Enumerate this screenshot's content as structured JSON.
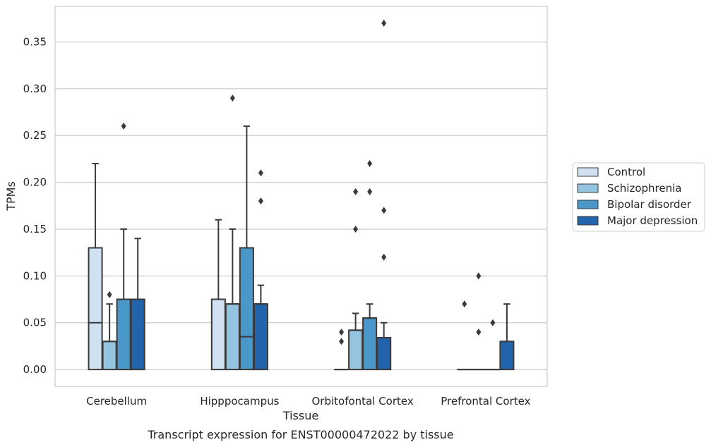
{
  "chart_data": {
    "type": "box",
    "title": "",
    "caption": "Transcript expression for ENST00000472022 by tissue",
    "xlabel": "Tissue",
    "ylabel": "TPMs",
    "ylim": [
      -0.018,
      0.388
    ],
    "yticks": [
      0.0,
      0.05,
      0.1,
      0.15,
      0.2,
      0.25,
      0.3,
      0.35
    ],
    "ytick_labels": [
      "0.00",
      "0.05",
      "0.10",
      "0.15",
      "0.20",
      "0.25",
      "0.30",
      "0.35"
    ],
    "grid": "horizontal",
    "legend_position": "right",
    "categories": [
      "Cerebellum",
      "Hipppocampus",
      "Orbitofontal Cortex",
      "Prefrontal Cortex"
    ],
    "series": [
      {
        "name": "Control",
        "color": "#d0e1f2",
        "boxes": [
          {
            "min": 0.0,
            "q1": 0.0,
            "median": 0.05,
            "q3": 0.13,
            "max": 0.22,
            "outliers": []
          },
          {
            "min": 0.0,
            "q1": 0.0,
            "median": 0.075,
            "q3": 0.075,
            "max": 0.16,
            "outliers": []
          },
          {
            "min": 0.0,
            "q1": 0.0,
            "median": 0.0,
            "q3": 0.0,
            "max": 0.0,
            "outliers": [
              0.03,
              0.04
            ]
          },
          {
            "min": 0.0,
            "q1": 0.0,
            "median": 0.0,
            "q3": 0.0,
            "max": 0.0,
            "outliers": [
              0.07
            ]
          }
        ]
      },
      {
        "name": "Schizophrenia",
        "color": "#94c4df",
        "boxes": [
          {
            "min": 0.0,
            "q1": 0.0,
            "median": 0.03,
            "q3": 0.03,
            "max": 0.07,
            "outliers": [
              0.08
            ]
          },
          {
            "min": 0.0,
            "q1": 0.0,
            "median": 0.07,
            "q3": 0.07,
            "max": 0.15,
            "outliers": [
              0.29
            ]
          },
          {
            "min": 0.0,
            "q1": 0.0,
            "median": 0.042,
            "q3": 0.042,
            "max": 0.06,
            "outliers": [
              0.15,
              0.19
            ]
          },
          {
            "min": 0.0,
            "q1": 0.0,
            "median": 0.0,
            "q3": 0.0,
            "max": 0.0,
            "outliers": [
              0.04,
              0.1
            ]
          }
        ]
      },
      {
        "name": "Bipolar disorder",
        "color": "#4a98c9",
        "boxes": [
          {
            "min": 0.0,
            "q1": 0.0,
            "median": 0.075,
            "q3": 0.075,
            "max": 0.15,
            "outliers": [
              0.26
            ]
          },
          {
            "min": 0.0,
            "q1": 0.0,
            "median": 0.035,
            "q3": 0.13,
            "max": 0.26,
            "outliers": []
          },
          {
            "min": 0.0,
            "q1": 0.0,
            "median": 0.055,
            "q3": 0.055,
            "max": 0.07,
            "outliers": [
              0.19,
              0.22
            ]
          },
          {
            "min": 0.0,
            "q1": 0.0,
            "median": 0.0,
            "q3": 0.0,
            "max": 0.0,
            "outliers": [
              0.05
            ]
          }
        ]
      },
      {
        "name": "Major depression",
        "color": "#2164ab",
        "boxes": [
          {
            "min": 0.0,
            "q1": 0.0,
            "median": 0.075,
            "q3": 0.075,
            "max": 0.14,
            "outliers": []
          },
          {
            "min": 0.0,
            "q1": 0.0,
            "median": 0.07,
            "q3": 0.07,
            "max": 0.09,
            "outliers": [
              0.18,
              0.21
            ]
          },
          {
            "min": 0.0,
            "q1": 0.0,
            "median": 0.034,
            "q3": 0.034,
            "max": 0.05,
            "outliers": [
              0.12,
              0.17,
              0.37
            ]
          },
          {
            "min": 0.0,
            "q1": 0.0,
            "median": 0.03,
            "q3": 0.03,
            "max": 0.07,
            "outliers": []
          }
        ]
      }
    ]
  }
}
